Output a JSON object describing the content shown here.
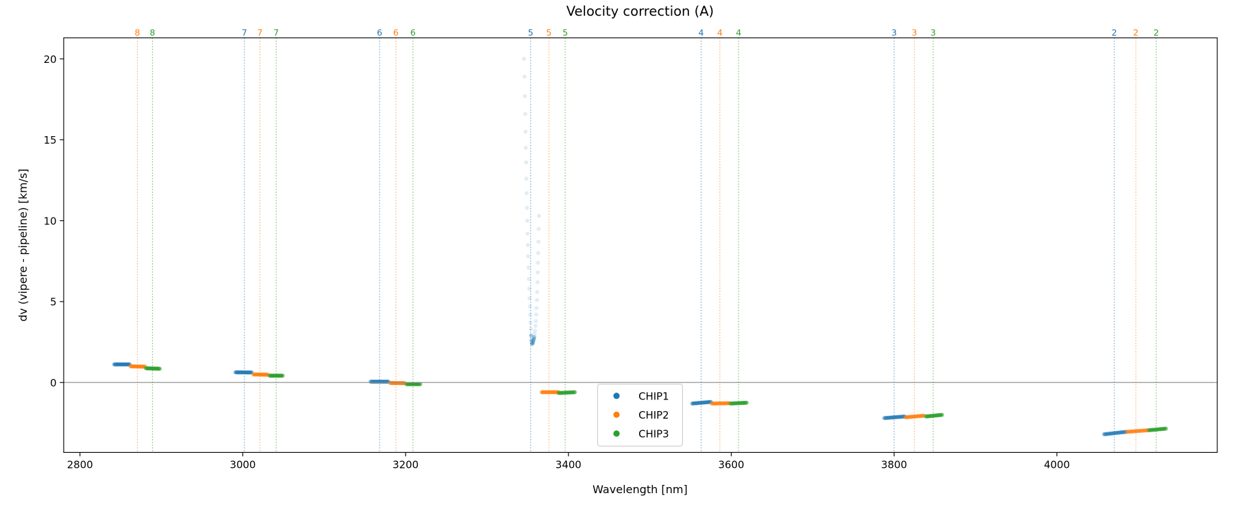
{
  "chart_data": {
    "type": "scatter",
    "title": "Velocity correction (A)",
    "xlabel": "Wavelength [nm]",
    "ylabel": "dv (vipere - pipeline) [km/s]",
    "xlim": [
      2780,
      4197
    ],
    "ylim": [
      -4.32,
      21.3
    ],
    "xticks": [
      2800,
      3000,
      3200,
      3400,
      3600,
      3800,
      4000
    ],
    "yticks": [
      0,
      5,
      10,
      15,
      20
    ],
    "grid": false,
    "reference_line_y": 0,
    "legend": {
      "placement": "lower-center",
      "entries": [
        "CHIP1",
        "CHIP2",
        "CHIP3"
      ]
    },
    "colors": {
      "CHIP1": "#1f77b4",
      "CHIP2": "#ff7f0e",
      "CHIP3": "#2ca02c"
    },
    "order_markers": [
      {
        "order": "8",
        "chip": "CHIP2",
        "x": 2870.5
      },
      {
        "order": "8",
        "chip": "CHIP3",
        "x": 2889
      },
      {
        "order": "7",
        "chip": "CHIP1",
        "x": 3002
      },
      {
        "order": "7",
        "chip": "CHIP2",
        "x": 3021
      },
      {
        "order": "7",
        "chip": "CHIP3",
        "x": 3041
      },
      {
        "order": "6",
        "chip": "CHIP1",
        "x": 3168
      },
      {
        "order": "6",
        "chip": "CHIP2",
        "x": 3188
      },
      {
        "order": "6",
        "chip": "CHIP3",
        "x": 3209
      },
      {
        "order": "5",
        "chip": "CHIP1",
        "x": 3353.6
      },
      {
        "order": "5",
        "chip": "CHIP2",
        "x": 3376
      },
      {
        "order": "5",
        "chip": "CHIP3",
        "x": 3396
      },
      {
        "order": "4",
        "chip": "CHIP1",
        "x": 3563
      },
      {
        "order": "4",
        "chip": "CHIP2",
        "x": 3586
      },
      {
        "order": "4",
        "chip": "CHIP3",
        "x": 3609
      },
      {
        "order": "3",
        "chip": "CHIP1",
        "x": 3800
      },
      {
        "order": "3",
        "chip": "CHIP2",
        "x": 3825
      },
      {
        "order": "3",
        "chip": "CHIP3",
        "x": 3848
      },
      {
        "order": "2",
        "chip": "CHIP1",
        "x": 4070.5
      },
      {
        "order": "2",
        "chip": "CHIP2",
        "x": 4097
      },
      {
        "order": "2",
        "chip": "CHIP3",
        "x": 4122
      }
    ],
    "series": [
      {
        "name": "CHIP1",
        "segments": [
          {
            "order": "8",
            "x": [
              2842,
              2861
            ],
            "y": [
              1.12,
              1.12
            ]
          },
          {
            "order": "7",
            "x": [
              2991,
              3011
            ],
            "y": [
              0.63,
              0.62
            ]
          },
          {
            "order": "6",
            "x": [
              3157,
              3179
            ],
            "y": [
              0.05,
              0.05
            ]
          },
          {
            "order": "4",
            "x": [
              3552,
              3575
            ],
            "y": [
              -1.3,
              -1.2
            ]
          },
          {
            "order": "3",
            "x": [
              3788,
              3813
            ],
            "y": [
              -2.2,
              -2.1
            ]
          },
          {
            "order": "2",
            "x": [
              4058,
              4085
            ],
            "y": [
              -3.2,
              -3.05
            ]
          }
        ],
        "outliers": {
          "order": "5",
          "x": [
            3345.5,
            3346,
            3346.5,
            3347,
            3347.3,
            3347.6,
            3348,
            3348.3,
            3348.7,
            3349,
            3349.4,
            3349.8,
            3350.2,
            3350.6,
            3351,
            3351.4,
            3351.8,
            3352.2,
            3352.6,
            3353,
            3353.4,
            3353.8,
            3354.2,
            3354.6,
            3355,
            3363.8,
            3363.5,
            3363.2,
            3362.9,
            3362.6,
            3362.3,
            3362,
            3361.6,
            3361.2,
            3360.8,
            3360.4,
            3360,
            3359.5,
            3359,
            3358.5,
            3358,
            3357.5,
            3357,
            3356.5,
            3356
          ],
          "y": [
            20,
            18.9,
            17.7,
            16.6,
            15.5,
            14.5,
            13.6,
            12.6,
            11.7,
            10.8,
            10.0,
            9.2,
            8.5,
            7.8,
            7.1,
            6.4,
            5.8,
            5.2,
            4.7,
            4.2,
            3.7,
            3.3,
            2.9,
            2.6,
            2.4,
            10.3,
            9.5,
            8.7,
            8.0,
            7.4,
            6.8,
            6.2,
            5.6,
            5.1,
            4.6,
            4.2,
            3.8,
            3.5,
            3.2,
            3.0,
            2.8,
            2.7,
            2.6,
            2.5,
            2.4
          ]
        }
      },
      {
        "name": "CHIP2",
        "segments": [
          {
            "order": "8",
            "x": [
              2862,
              2880
            ],
            "y": [
              1.0,
              0.98
            ]
          },
          {
            "order": "7",
            "x": [
              3013,
              3031
            ],
            "y": [
              0.5,
              0.48
            ]
          },
          {
            "order": "6",
            "x": [
              3181,
              3199
            ],
            "y": [
              -0.03,
              -0.04
            ]
          },
          {
            "order": "5",
            "x": [
              3367,
              3388
            ],
            "y": [
              -0.6,
              -0.6
            ]
          },
          {
            "order": "4",
            "x": [
              3576,
              3598
            ],
            "y": [
              -1.3,
              -1.28
            ]
          },
          {
            "order": "3",
            "x": [
              3814,
              3837
            ],
            "y": [
              -2.15,
              -2.05
            ]
          },
          {
            "order": "2",
            "x": [
              4086,
              4112
            ],
            "y": [
              -3.05,
              -2.95
            ]
          }
        ]
      },
      {
        "name": "CHIP3",
        "segments": [
          {
            "order": "8",
            "x": [
              2881,
              2898
            ],
            "y": [
              0.88,
              0.85
            ]
          },
          {
            "order": "7",
            "x": [
              3033,
              3049
            ],
            "y": [
              0.42,
              0.42
            ]
          },
          {
            "order": "6",
            "x": [
              3201,
              3218
            ],
            "y": [
              -0.1,
              -0.1
            ]
          },
          {
            "order": "5",
            "x": [
              3388,
              3408
            ],
            "y": [
              -0.65,
              -0.6
            ]
          },
          {
            "order": "4",
            "x": [
              3599,
              3619
            ],
            "y": [
              -1.3,
              -1.25
            ]
          },
          {
            "order": "3",
            "x": [
              3839,
              3859
            ],
            "y": [
              -2.1,
              -2.0
            ]
          },
          {
            "order": "2",
            "x": [
              4113,
              4134
            ],
            "y": [
              -2.95,
              -2.85
            ]
          }
        ]
      }
    ]
  }
}
